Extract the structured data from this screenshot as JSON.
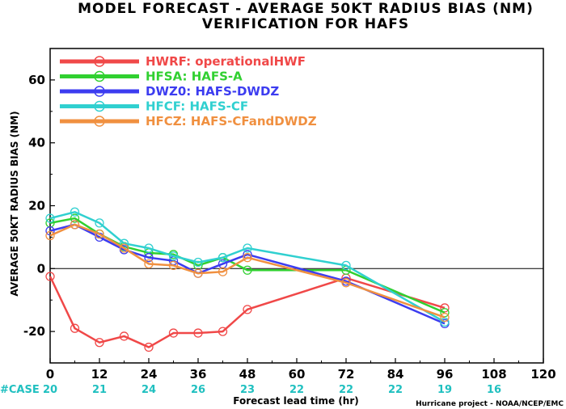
{
  "chart_data": {
    "type": "line",
    "title": "MODEL FORECAST - AVERAGE 50KT RADIUS BIAS (NM)",
    "subtitle": "VERIFICATION FOR HAFS",
    "xlabel": "Forecast lead time (hr)",
    "ylabel": "AVERAGE 50KT RADIUS BIAS (NM)",
    "xlim": [
      0,
      120
    ],
    "ylim": [
      -30,
      70
    ],
    "x_ticks": [
      0,
      12,
      24,
      36,
      48,
      60,
      72,
      84,
      96,
      108,
      120
    ],
    "y_ticks": [
      -20,
      0,
      20,
      40,
      60
    ],
    "zero_line": true,
    "legend_position": "top-left",
    "case_label": "#CASE",
    "cases": [
      {
        "x": 0,
        "n": "20"
      },
      {
        "x": 12,
        "n": "21"
      },
      {
        "x": 24,
        "n": "24"
      },
      {
        "x": 36,
        "n": "26"
      },
      {
        "x": 48,
        "n": "23"
      },
      {
        "x": 60,
        "n": "22"
      },
      {
        "x": 72,
        "n": "22"
      },
      {
        "x": 84,
        "n": "22"
      },
      {
        "x": 96,
        "n": "19"
      },
      {
        "x": 108,
        "n": "16"
      }
    ],
    "credit": "Hurricane project - NOAA/NCEP/EMC",
    "series": [
      {
        "name": "HWRF: operationalHWF",
        "color": "#f04848",
        "x": [
          0,
          6,
          12,
          18,
          24,
          30,
          36,
          42,
          48,
          72,
          96
        ],
        "y": [
          -2.5,
          -19,
          -23.5,
          -21.5,
          -25,
          -20.5,
          -20.5,
          -20,
          -13,
          -3,
          -12.5
        ]
      },
      {
        "name": "HFSA: HAFS-A",
        "color": "#30d030",
        "x": [
          0,
          6,
          12,
          18,
          24,
          30,
          36,
          42,
          48,
          72,
          96
        ],
        "y": [
          14.5,
          16,
          11,
          7,
          5,
          4.5,
          1,
          3.5,
          -0.5,
          -0.5,
          -14
        ]
      },
      {
        "name": "DWZ0: HAFS-DWDZ",
        "color": "#3c3cf0",
        "x": [
          0,
          6,
          12,
          18,
          24,
          30,
          36,
          42,
          48,
          72,
          96
        ],
        "y": [
          12,
          14,
          10,
          6,
          3.5,
          2.5,
          -1.5,
          1.5,
          4.5,
          -4,
          -17.5
        ]
      },
      {
        "name": "HFCF: HAFS-CF",
        "color": "#30d0d0",
        "x": [
          0,
          6,
          12,
          18,
          24,
          30,
          36,
          42,
          48,
          72,
          96
        ],
        "y": [
          16,
          18,
          14.5,
          8,
          6.5,
          4,
          2,
          3.5,
          6.5,
          1,
          -17
        ]
      },
      {
        "name": "HFCZ: HAFS-CFandDWDZ",
        "color": "#f09040",
        "x": [
          0,
          6,
          12,
          18,
          24,
          30,
          36,
          42,
          48,
          72,
          96
        ],
        "y": [
          10.5,
          14,
          11,
          6.5,
          1.5,
          1,
          -1.5,
          -1,
          3.5,
          -4.5,
          -15.5
        ]
      }
    ]
  }
}
